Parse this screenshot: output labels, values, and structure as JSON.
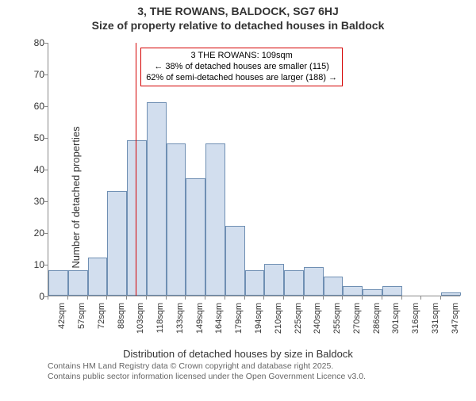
{
  "title_line1": "3, THE ROWANS, BALDOCK, SG7 6HJ",
  "title_line2": "Size of property relative to detached houses in Baldock",
  "ylabel": "Number of detached properties",
  "xlabel": "Distribution of detached houses by size in Baldock",
  "chart": {
    "type": "histogram",
    "ylim": [
      0,
      80
    ],
    "ytick_step": 10,
    "x_labels": [
      "42sqm",
      "57sqm",
      "72sqm",
      "88sqm",
      "103sqm",
      "118sqm",
      "133sqm",
      "149sqm",
      "164sqm",
      "179sqm",
      "194sqm",
      "210sqm",
      "225sqm",
      "240sqm",
      "255sqm",
      "270sqm",
      "286sqm",
      "301sqm",
      "316sqm",
      "331sqm",
      "347sqm"
    ],
    "values": [
      8,
      8,
      12,
      33,
      49,
      61,
      48,
      37,
      48,
      22,
      8,
      10,
      8,
      9,
      6,
      3,
      2,
      3,
      0,
      0,
      1
    ],
    "bar_fill": "#d2deee",
    "bar_stroke": "#6f8fb3",
    "background_color": "#ffffff",
    "tick_fontsize": 12,
    "label_fontsize": 13,
    "title_fontsize": 14,
    "marker": {
      "x_index": 4.45,
      "color": "#d40000",
      "callout_border": "#d40000",
      "line1": "3 THE ROWANS: 109sqm",
      "line2": "← 38% of detached houses are smaller (115)",
      "line3": "62% of semi-detached houses are larger (188) →"
    }
  },
  "footer_line1": "Contains HM Land Registry data © Crown copyright and database right 2025.",
  "footer_line2": "Contains public sector information licensed under the Open Government Licence v3.0."
}
